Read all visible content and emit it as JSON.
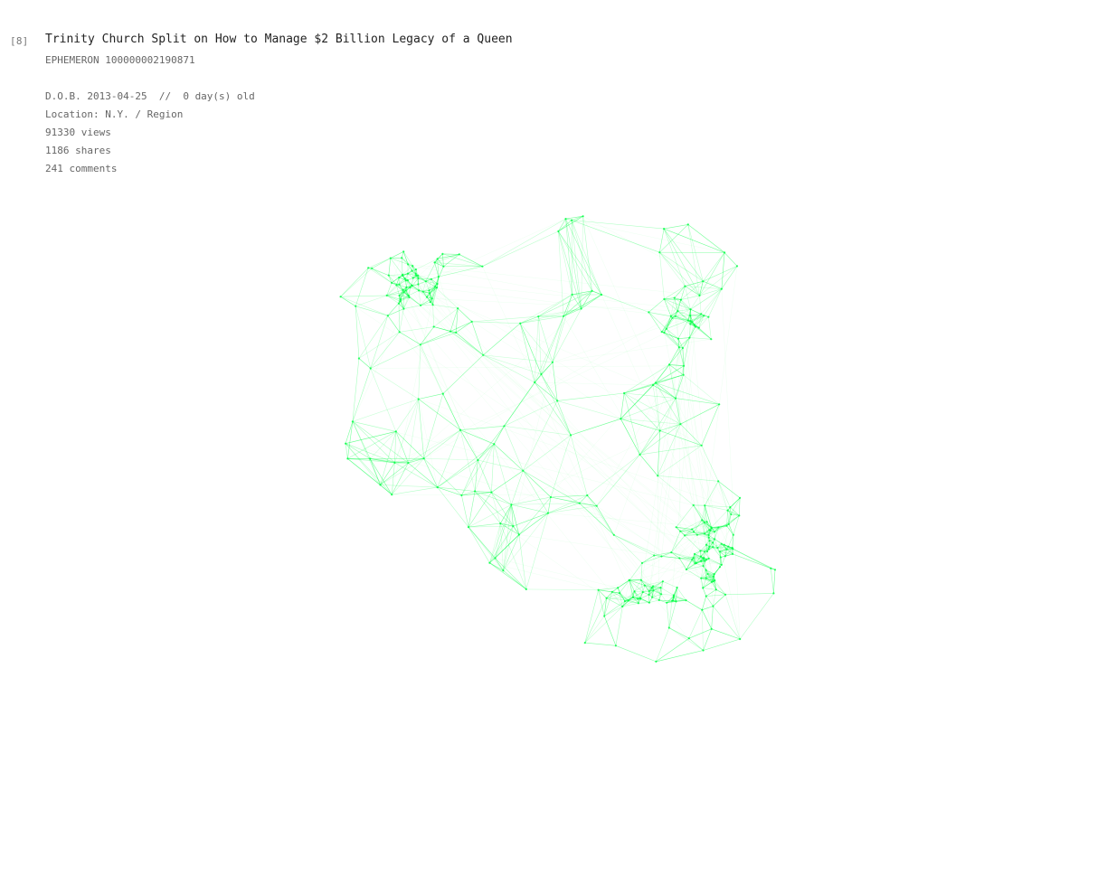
{
  "item": {
    "index": "[8]",
    "title": "Trinity Church Split on How to Manage $2 Billion Legacy of a Queen",
    "id_line": "EPHEMERON 100000002190871",
    "dob_line": "D.O.B. 2013-04-25  //  0 day(s) old",
    "location_line": "Location: N.Y. / Region",
    "views_line": "91330 views",
    "shares_line": "1186 shares",
    "comments_line": "241 comments"
  },
  "graph": {
    "edge_color": "#00ff44",
    "node_color": "#00ff44"
  }
}
